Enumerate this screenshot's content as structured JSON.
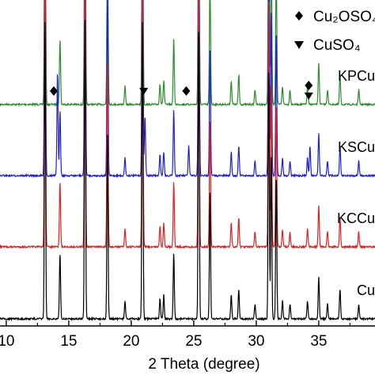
{
  "chart_data": {
    "type": "line",
    "xlabel": "2 Theta (degree)",
    "ylabel": "",
    "xlim": [
      9.5,
      39.5
    ],
    "xticks": [
      10,
      15,
      20,
      25,
      30,
      35
    ],
    "grid": false,
    "legend_position": "top-right",
    "legend": [
      {
        "marker": "diamond",
        "label": "Cu₂OSO₄"
      },
      {
        "marker": "triangle-down",
        "label": "CuSO₄"
      }
    ],
    "baseline_peaks": [
      {
        "x": 13.1,
        "h": 1.0
      },
      {
        "x": 14.3,
        "h": 0.22
      },
      {
        "x": 16.3,
        "h": 1.0
      },
      {
        "x": 18.1,
        "h": 0.62
      },
      {
        "x": 19.5,
        "h": 0.06
      },
      {
        "x": 20.9,
        "h": 1.0
      },
      {
        "x": 22.3,
        "h": 0.07
      },
      {
        "x": 22.6,
        "h": 0.08
      },
      {
        "x": 23.4,
        "h": 0.22
      },
      {
        "x": 25.4,
        "h": 1.0
      },
      {
        "x": 26.3,
        "h": 0.42
      },
      {
        "x": 28.0,
        "h": 0.08
      },
      {
        "x": 28.6,
        "h": 0.1
      },
      {
        "x": 29.9,
        "h": 0.05
      },
      {
        "x": 31.0,
        "h": 0.85
      },
      {
        "x": 31.2,
        "h": 0.55
      },
      {
        "x": 31.6,
        "h": 0.48
      },
      {
        "x": 32.1,
        "h": 0.06
      },
      {
        "x": 32.7,
        "h": 0.05
      },
      {
        "x": 34.1,
        "h": 0.06
      },
      {
        "x": 35.0,
        "h": 0.14
      },
      {
        "x": 35.7,
        "h": 0.05
      },
      {
        "x": 36.7,
        "h": 0.1
      },
      {
        "x": 38.2,
        "h": 0.05
      }
    ],
    "series": [
      {
        "name": "KPCu",
        "color": "#2e8b2e",
        "offset": 3
      },
      {
        "name": "KSCu",
        "color": "#1f1fd6",
        "offset": 2,
        "extra_peaks": [
          {
            "x": 14.1,
            "h": 0.35
          },
          {
            "x": 24.6,
            "h": 0.1
          },
          {
            "x": 34.3,
            "h": 0.1
          },
          {
            "x": 21.1,
            "h": 0.2
          }
        ]
      },
      {
        "name": "KCCu",
        "color": "#e02020",
        "offset": 1
      },
      {
        "name": "Cu",
        "color": "#000000",
        "offset": 0
      }
    ],
    "annotations": [
      {
        "series": "KSCu",
        "marker": "diamond",
        "x": 13.8
      },
      {
        "series": "KSCu",
        "marker": "triangle-down",
        "x": 21.0
      },
      {
        "series": "KSCu",
        "marker": "diamond",
        "x": 24.4
      },
      {
        "series": "KSCu",
        "marker": "diamond",
        "x": 34.2
      },
      {
        "series": "KSCu",
        "marker": "triangle-down",
        "x": 34.2
      }
    ]
  }
}
